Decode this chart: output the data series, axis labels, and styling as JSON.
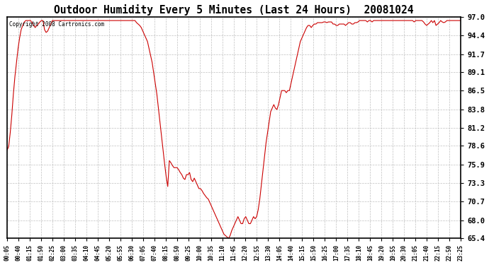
{
  "title": "Outdoor Humidity Every 5 Minutes (Last 24 Hours)  20081024",
  "copyright": "Copyright 2008 Cartronics.com",
  "line_color": "#cc0000",
  "background_color": "#ffffff",
  "yticks": [
    65.4,
    68.0,
    70.7,
    73.3,
    75.9,
    78.6,
    81.2,
    83.8,
    86.5,
    89.1,
    91.7,
    94.4,
    97.0
  ],
  "ylim": [
    65.4,
    97.0
  ],
  "xtick_labels": [
    "00:05",
    "00:40",
    "01:15",
    "01:50",
    "02:25",
    "03:00",
    "03:35",
    "04:10",
    "04:45",
    "05:20",
    "05:55",
    "06:30",
    "07:05",
    "07:40",
    "08:15",
    "08:50",
    "09:25",
    "10:00",
    "10:35",
    "11:10",
    "11:45",
    "12:20",
    "12:55",
    "13:30",
    "14:05",
    "14:40",
    "15:15",
    "15:50",
    "16:25",
    "17:00",
    "17:35",
    "18:10",
    "18:45",
    "19:20",
    "19:55",
    "20:30",
    "21:05",
    "21:40",
    "22:15",
    "22:50",
    "23:25"
  ],
  "humidity_values": [
    78.0,
    78.5,
    80.5,
    83.0,
    86.0,
    88.5,
    90.5,
    92.5,
    94.0,
    95.2,
    95.8,
    96.3,
    96.5,
    96.5,
    96.5,
    96.5,
    96.2,
    95.8,
    95.5,
    95.8,
    96.0,
    96.3,
    96.5,
    96.5,
    95.2,
    94.8,
    95.0,
    95.5,
    96.0,
    96.5,
    96.5,
    96.5,
    96.5,
    96.5,
    96.5,
    96.5,
    96.5,
    96.5,
    96.5,
    96.5,
    96.5,
    96.5,
    96.5,
    96.5,
    96.5,
    96.5,
    96.5,
    96.5,
    96.5,
    96.5,
    96.5,
    96.5,
    96.5,
    96.5,
    96.5,
    96.5,
    96.5,
    96.5,
    96.5,
    96.5,
    96.5,
    96.5,
    96.5,
    96.5,
    96.5,
    96.5,
    96.5,
    96.5,
    96.5,
    96.5,
    96.5,
    96.5,
    96.5,
    96.5,
    96.5,
    96.5,
    96.5,
    96.5,
    96.5,
    96.5,
    96.5,
    96.5,
    96.5,
    96.2,
    96.0,
    95.8,
    95.5,
    95.0,
    94.5,
    94.0,
    93.5,
    92.5,
    91.5,
    90.5,
    89.0,
    87.5,
    86.0,
    84.0,
    82.0,
    80.0,
    78.0,
    76.0,
    74.2,
    72.8,
    76.5,
    76.2,
    75.8,
    75.5,
    75.5,
    75.5,
    75.2,
    74.8,
    74.5,
    74.0,
    73.8,
    74.5,
    74.5,
    74.8,
    73.8,
    73.5,
    74.0,
    73.5,
    73.0,
    72.5,
    72.5,
    72.2,
    71.8,
    71.5,
    71.2,
    71.0,
    70.5,
    70.0,
    69.5,
    69.0,
    68.5,
    68.0,
    67.5,
    67.0,
    66.5,
    66.0,
    65.8,
    65.6,
    65.4,
    65.8,
    66.5,
    67.0,
    67.5,
    68.0,
    68.5,
    68.0,
    67.5,
    67.5,
    68.2,
    68.5,
    68.0,
    67.5,
    67.5,
    68.0,
    68.5,
    68.2,
    68.5,
    69.5,
    71.0,
    73.0,
    75.0,
    77.0,
    79.0,
    80.5,
    82.0,
    83.5,
    84.0,
    84.5,
    84.0,
    83.8,
    84.5,
    85.5,
    86.5,
    86.5,
    86.5,
    86.2,
    86.5,
    86.5,
    87.5,
    88.5,
    89.5,
    90.5,
    91.5,
    92.5,
    93.5,
    94.0,
    94.5,
    95.0,
    95.5,
    95.8,
    95.8,
    95.5,
    95.8,
    96.0,
    96.0,
    96.2,
    96.2,
    96.2,
    96.2,
    96.3,
    96.3,
    96.2,
    96.3,
    96.3,
    96.3,
    96.0,
    96.0,
    95.8,
    95.8,
    96.0,
    96.0,
    96.0,
    96.0,
    95.8,
    96.0,
    96.2,
    96.2,
    96.0,
    96.0,
    96.2,
    96.2,
    96.3,
    96.5,
    96.5,
    96.5,
    96.5,
    96.5,
    96.3,
    96.5,
    96.5,
    96.3,
    96.5,
    96.5,
    96.5,
    96.5,
    96.5,
    96.5,
    96.5,
    96.5,
    96.5,
    96.5,
    96.5,
    96.5,
    96.5,
    96.5,
    96.5,
    96.5,
    96.5,
    96.5,
    96.5,
    96.5,
    96.5,
    96.5,
    96.5,
    96.5,
    96.5,
    96.5,
    96.3,
    96.5,
    96.5,
    96.5,
    96.5,
    96.5,
    96.3,
    96.0,
    95.8,
    96.0,
    96.2,
    96.5,
    96.2,
    96.5,
    95.8,
    96.0,
    96.2,
    96.5,
    96.3,
    96.2,
    96.3,
    96.5,
    96.5,
    96.5,
    96.5,
    96.5,
    96.5,
    96.5,
    96.5,
    96.5,
    96.5
  ]
}
